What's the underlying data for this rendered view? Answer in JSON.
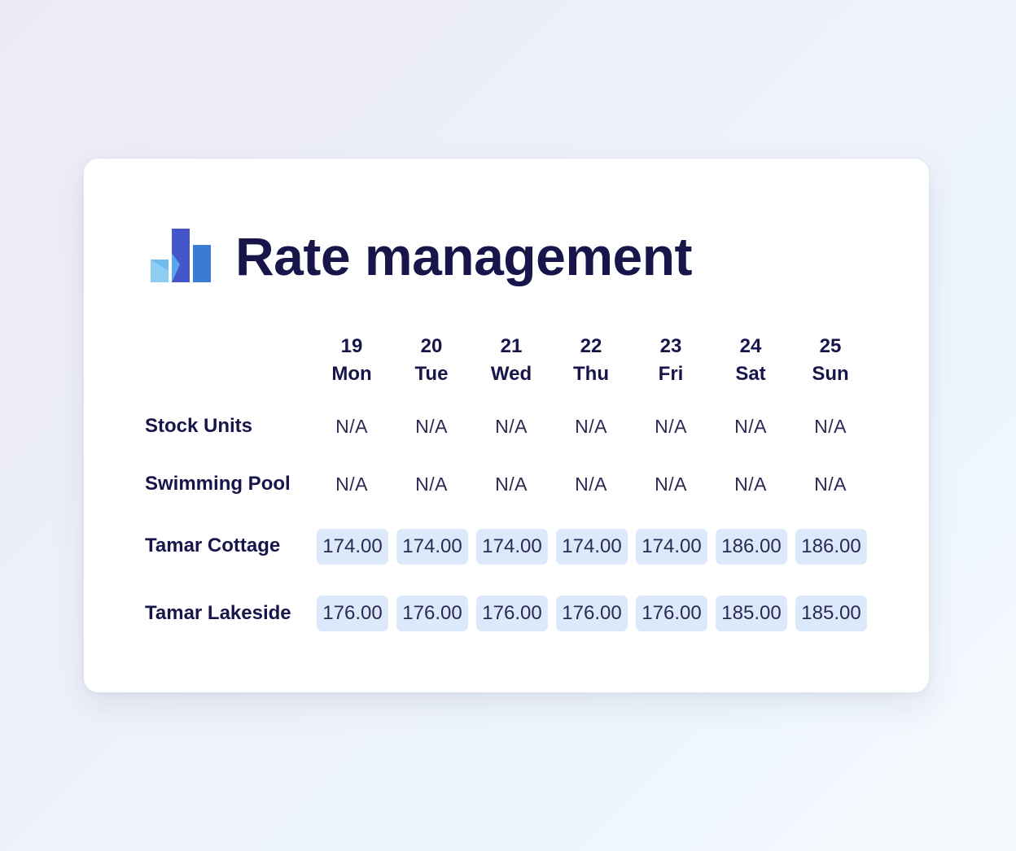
{
  "title": "Rate management",
  "logo_icon": "bar-chart-logo-icon",
  "colors": {
    "title": "#17154a",
    "rate_cell_bg": "#dce9fb",
    "logo_dark": "#4456c9",
    "logo_mid": "#3b7bd6",
    "logo_light": "#6fbdf0"
  },
  "days": [
    {
      "date": "19",
      "weekday": "Mon"
    },
    {
      "date": "20",
      "weekday": "Tue"
    },
    {
      "date": "21",
      "weekday": "Wed"
    },
    {
      "date": "22",
      "weekday": "Thu"
    },
    {
      "date": "23",
      "weekday": "Fri"
    },
    {
      "date": "24",
      "weekday": "Sat"
    },
    {
      "date": "25",
      "weekday": "Sun"
    }
  ],
  "rows": [
    {
      "label": "Stock Units",
      "type": "na",
      "values": [
        "N/A",
        "N/A",
        "N/A",
        "N/A",
        "N/A",
        "N/A",
        "N/A"
      ]
    },
    {
      "label": "Swimming Pool",
      "type": "na",
      "values": [
        "N/A",
        "N/A",
        "N/A",
        "N/A",
        "N/A",
        "N/A",
        "N/A"
      ]
    },
    {
      "label": "Tamar Cottage",
      "type": "rate",
      "values": [
        "174.00",
        "174.00",
        "174.00",
        "174.00",
        "174.00",
        "186.00",
        "186.00"
      ]
    },
    {
      "label": "Tamar Lakeside",
      "type": "rate",
      "values": [
        "176.00",
        "176.00",
        "176.00",
        "176.00",
        "176.00",
        "185.00",
        "185.00"
      ]
    }
  ]
}
